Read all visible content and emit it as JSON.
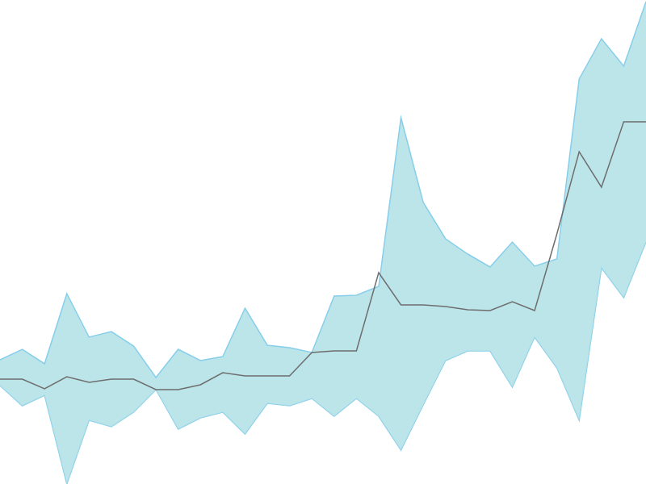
{
  "chart_data": {
    "type": "line",
    "categories": [
      null,
      null,
      null,
      null,
      null,
      null,
      null,
      null,
      null,
      null,
      null,
      null,
      null,
      null,
      null,
      null,
      null,
      null,
      null,
      null,
      null,
      null,
      null,
      null,
      null,
      null,
      null,
      null,
      null,
      null
    ],
    "series": [
      {
        "type": "band",
        "color": "#87ceeb",
        "upper": [
          154,
          167,
          149,
          236,
          182,
          189,
          171,
          132,
          167,
          153,
          158,
          218,
          172,
          169,
          163,
          233,
          234,
          245,
          454,
          349,
          304,
          285,
          269,
          300,
          270,
          279,
          502,
          552,
          518,
          598
        ],
        "lower": [
          122,
          97,
          110,
          0,
          79,
          71,
          89,
          117,
          68,
          82,
          89,
          62,
          100,
          97,
          106,
          84,
          106,
          84,
          42,
          98,
          153,
          165,
          165,
          120,
          182,
          144,
          79,
          268,
          231,
          300
        ]
      },
      {
        "type": "line",
        "color": "#6e6e6e",
        "values": [
          130,
          130,
          118,
          133,
          126,
          130,
          130,
          117,
          117,
          123,
          138,
          134,
          134,
          134,
          163,
          165,
          165,
          262,
          222,
          222,
          220,
          216,
          215,
          226,
          215,
          310,
          412,
          368,
          449,
          449
        ]
      }
    ],
    "ylim": [
      0,
      600
    ],
    "yticks": [
      0,
      600
    ],
    "grid": false,
    "tick_labels": false
  }
}
